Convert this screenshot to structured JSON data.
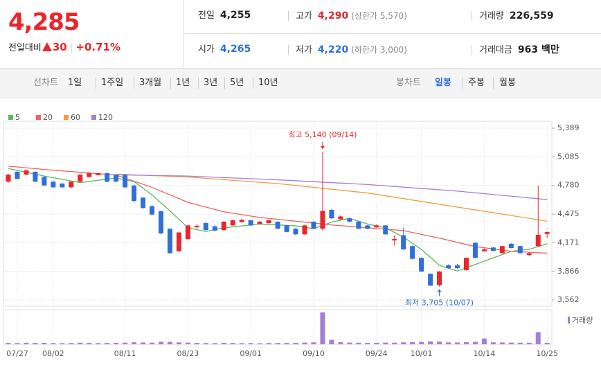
{
  "header": {
    "price": "4,285",
    "change_label": "전일대비",
    "change": "30",
    "change_pct": "+0.71%",
    "table": [
      [
        {
          "label": "전일",
          "value": "4,255"
        },
        {
          "label": "고가",
          "value": "4,290",
          "note": "(상한가 5,570)"
        },
        {
          "label": "거래량",
          "value": "226,559"
        }
      ],
      [
        {
          "label": "시가",
          "value": "4,265"
        },
        {
          "label": "저가",
          "value": "4,220",
          "note": "(하한가 3,000)"
        },
        {
          "label": "거래대금",
          "value": "963 백만"
        }
      ]
    ],
    "line_tabs_label": "선차트",
    "line_tabs": [
      "1일",
      "1주일",
      "3개월",
      "1년",
      "3년",
      "5년",
      "10년"
    ],
    "candle_tabs_label": "봉차트",
    "candle_tabs": [
      "일봉",
      "주봉",
      "월봉"
    ]
  },
  "chart_data": {
    "type": "candlestick",
    "categories": [
      null,
      "07/27",
      null,
      null,
      null,
      "08/02",
      null,
      null,
      null,
      null,
      null,
      null,
      null,
      "08/11",
      null,
      null,
      null,
      null,
      null,
      null,
      "08/23",
      null,
      null,
      null,
      null,
      null,
      null,
      "09/01",
      null,
      null,
      null,
      null,
      null,
      null,
      "09/10",
      null,
      null,
      null,
      null,
      null,
      null,
      "09/24",
      null,
      null,
      null,
      null,
      "10/01",
      null,
      null,
      null,
      null,
      null,
      null,
      "10/14",
      null,
      null,
      null,
      null,
      null,
      null,
      "10/25"
    ],
    "candles": [
      [
        4820,
        4905,
        4810,
        4895
      ],
      [
        4925,
        4935,
        4845,
        4850
      ],
      [
        4895,
        4950,
        4890,
        4940
      ],
      [
        4925,
        4930,
        4815,
        4820
      ],
      [
        4870,
        4880,
        4770,
        4780
      ],
      [
        4820,
        4830,
        4755,
        4760
      ],
      [
        4800,
        4810,
        4755,
        4760
      ],
      [
        4760,
        4830,
        4750,
        4820
      ],
      [
        4820,
        4900,
        4810,
        4895
      ],
      [
        4870,
        4920,
        4865,
        4910
      ],
      [
        4890,
        4915,
        4885,
        4910
      ],
      [
        4910,
        4920,
        4815,
        4820
      ],
      [
        4895,
        4900,
        4815,
        4820
      ],
      [
        4895,
        4900,
        4750,
        4760
      ],
      [
        4780,
        4790,
        4600,
        4615
      ],
      [
        4650,
        4660,
        4530,
        4540
      ],
      [
        4560,
        4570,
        4460,
        4470
      ],
      [
        4505,
        4515,
        4260,
        4270
      ],
      [
        4320,
        4330,
        4050,
        4060
      ],
      [
        4080,
        4290,
        4070,
        4280
      ],
      [
        4210,
        4365,
        4200,
        4355
      ],
      [
        4335,
        4370,
        4320,
        4350
      ],
      [
        4380,
        4390,
        4300,
        4305
      ],
      [
        4345,
        4360,
        4290,
        4300
      ],
      [
        4305,
        4400,
        4295,
        4395
      ],
      [
        4355,
        4420,
        4350,
        4410
      ],
      [
        4390,
        4425,
        4385,
        4415
      ],
      [
        4410,
        4415,
        4350,
        4355
      ],
      [
        4370,
        4405,
        4365,
        4395
      ],
      [
        4380,
        4415,
        4375,
        4410
      ],
      [
        4395,
        4400,
        4315,
        4320
      ],
      [
        4355,
        4360,
        4280,
        4285
      ],
      [
        4320,
        4330,
        4250,
        4260
      ],
      [
        4260,
        4365,
        4255,
        4355
      ],
      [
        4395,
        4400,
        4315,
        4320
      ],
      [
        4320,
        5140,
        4300,
        4510
      ],
      [
        4520,
        4530,
        4425,
        4430
      ],
      [
        4420,
        4460,
        4415,
        4450
      ],
      [
        4430,
        4440,
        4390,
        4395
      ],
      [
        4395,
        4400,
        4315,
        4320
      ],
      [
        4355,
        4360,
        4315,
        4320
      ],
      [
        4335,
        4365,
        4330,
        4355
      ],
      [
        4355,
        4360,
        4255,
        4260
      ],
      [
        4195,
        4250,
        4140,
        4210
      ],
      [
        4250,
        4330,
        4095,
        4100
      ],
      [
        4135,
        4140,
        3995,
        4000
      ],
      [
        4010,
        4015,
        3860,
        3865
      ],
      [
        3840,
        3845,
        3710,
        3715
      ],
      [
        3720,
        3870,
        3705,
        3865
      ],
      [
        3930,
        3940,
        3895,
        3900
      ],
      [
        3930,
        3945,
        3895,
        3900
      ],
      [
        3880,
        4015,
        3875,
        4010
      ],
      [
        4170,
        4175,
        4005,
        4010
      ],
      [
        4080,
        4110,
        4075,
        4100
      ],
      [
        4120,
        4125,
        4080,
        4085
      ],
      [
        4060,
        4140,
        4055,
        4135
      ],
      [
        4160,
        4165,
        4110,
        4115
      ],
      [
        4135,
        4140,
        4055,
        4060
      ],
      [
        4040,
        4070,
        4030,
        4060
      ],
      [
        4135,
        4780,
        4130,
        4255
      ],
      [
        4265,
        4290,
        4220,
        4285
      ]
    ],
    "up_color": "#e8262b",
    "down_color": "#2f6fd8",
    "series": [
      {
        "name": "5",
        "color": "#5cb85c",
        "x": [
          0,
          4,
          8,
          12,
          14,
          16,
          18,
          20,
          22,
          24,
          28,
          32,
          34,
          36,
          38,
          40,
          42,
          44,
          46,
          48,
          50,
          52,
          54,
          56,
          58,
          60
        ],
        "values": [
          4960,
          4880,
          4810,
          4860,
          4820,
          4680,
          4510,
          4330,
          4290,
          4330,
          4370,
          4350,
          4320,
          4390,
          4430,
          4370,
          4330,
          4230,
          4100,
          3930,
          3870,
          3940,
          4010,
          4080,
          4100,
          4160
        ]
      },
      {
        "name": "20",
        "color": "#f0625f",
        "x": [
          0,
          4,
          8,
          12,
          16,
          20,
          24,
          28,
          32,
          36,
          40,
          44,
          48,
          52,
          56,
          60
        ],
        "values": [
          4985,
          4950,
          4920,
          4890,
          4760,
          4600,
          4500,
          4440,
          4400,
          4360,
          4330,
          4300,
          4220,
          4130,
          4080,
          4060
        ]
      },
      {
        "name": "60",
        "color": "#f79a3e",
        "x": [
          12,
          20,
          30,
          40,
          50,
          60
        ],
        "values": [
          4900,
          4870,
          4800,
          4700,
          4550,
          4400
        ]
      },
      {
        "name": "120",
        "color": "#a27fd6",
        "x": [
          11,
          20,
          30,
          40,
          50,
          60
        ],
        "values": [
          4895,
          4880,
          4840,
          4790,
          4720,
          4630
        ]
      }
    ],
    "ylim": [
      3496,
      5463
    ],
    "yticks": [
      {
        "value": 5389,
        "label": "5,389"
      },
      {
        "value": 5085,
        "label": "5,085"
      },
      {
        "value": 4780,
        "label": "4,780"
      },
      {
        "value": 4475,
        "label": "4,475"
      },
      {
        "value": 4171,
        "label": "4,171"
      },
      {
        "value": 3866,
        "label": "3,866"
      },
      {
        "value": 3562,
        "label": "3,562"
      }
    ],
    "grid": true,
    "annotations": [
      {
        "text": "최고 5,140 (09/14)",
        "x": 35,
        "value": 5140,
        "color": "#e8262b",
        "position": "above"
      },
      {
        "text": "최저 3,705 (10/07)",
        "x": 48,
        "value": 3705,
        "color": "#2f6fd8",
        "position": "below"
      }
    ],
    "volume": {
      "name": "거래량",
      "color": "#a27fd6",
      "ylim": [
        0,
        5100000
      ],
      "values": [
        210000,
        190000,
        230000,
        200000,
        220000,
        180000,
        170000,
        190000,
        240000,
        210000,
        180000,
        200000,
        230000,
        260000,
        310000,
        280000,
        250000,
        400000,
        380000,
        300000,
        260000,
        210000,
        190000,
        180000,
        220000,
        200000,
        170000,
        180000,
        160000,
        190000,
        200000,
        210000,
        220000,
        260000,
        300000,
        5000000,
        700000,
        320000,
        260000,
        240000,
        220000,
        230000,
        260000,
        250000,
        300000,
        330000,
        380000,
        450000,
        420000,
        300000,
        280000,
        320000,
        380000,
        900000,
        300000,
        280000,
        260000,
        240000,
        230000,
        1900000,
        226559
      ]
    }
  }
}
